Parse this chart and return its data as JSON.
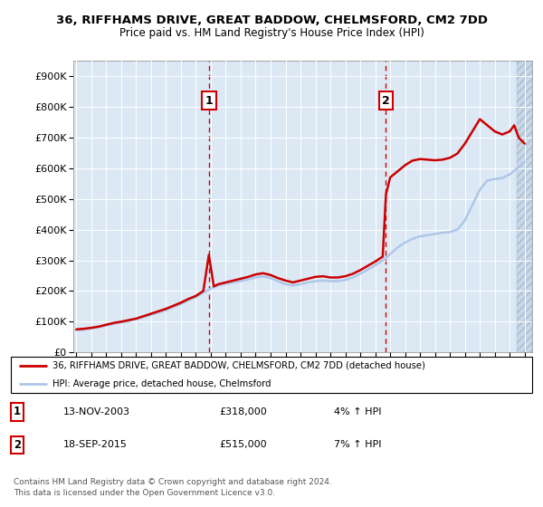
{
  "title1": "36, RIFFHAMS DRIVE, GREAT BADDOW, CHELMSFORD, CM2 7DD",
  "title2": "Price paid vs. HM Land Registry's House Price Index (HPI)",
  "ylabel_ticks": [
    "£0",
    "£100K",
    "£200K",
    "£300K",
    "£400K",
    "£500K",
    "£600K",
    "£700K",
    "£800K",
    "£900K"
  ],
  "ytick_values": [
    0,
    100000,
    200000,
    300000,
    400000,
    500000,
    600000,
    700000,
    800000,
    900000
  ],
  "ylim": [
    0,
    950000
  ],
  "xlim_start": 1994.8,
  "xlim_end": 2025.5,
  "plot_bg": "#dce9f5",
  "hpi_color": "#aec6e8",
  "price_color": "#cc0000",
  "marker1_date": 2003.87,
  "marker2_date": 2015.72,
  "annotation1_text": "1",
  "annotation2_text": "2",
  "legend_line1": "36, RIFFHAMS DRIVE, GREAT BADDOW, CHELMSFORD, CM2 7DD (detached house)",
  "legend_line2": "HPI: Average price, detached house, Chelmsford",
  "note1_label": "1",
  "note1_date": "13-NOV-2003",
  "note1_price": "£318,000",
  "note1_hpi": "4% ↑ HPI",
  "note2_label": "2",
  "note2_date": "18-SEP-2015",
  "note2_price": "£515,000",
  "note2_hpi": "7% ↑ HPI",
  "footer": "Contains HM Land Registry data © Crown copyright and database right 2024.\nThis data is licensed under the Open Government Licence v3.0.",
  "hpi_line": {
    "years": [
      1995.0,
      1995.5,
      1996.0,
      1996.5,
      1997.0,
      1997.5,
      1998.0,
      1998.5,
      1999.0,
      1999.5,
      2000.0,
      2000.5,
      2001.0,
      2001.5,
      2002.0,
      2002.5,
      2003.0,
      2003.5,
      2004.0,
      2004.5,
      2005.0,
      2005.5,
      2006.0,
      2006.5,
      2007.0,
      2007.5,
      2008.0,
      2008.5,
      2009.0,
      2009.5,
      2010.0,
      2010.5,
      2011.0,
      2011.5,
      2012.0,
      2012.5,
      2013.0,
      2013.5,
      2014.0,
      2014.5,
      2015.0,
      2015.5,
      2016.0,
      2016.5,
      2017.0,
      2017.5,
      2018.0,
      2018.5,
      2019.0,
      2019.5,
      2020.0,
      2020.5,
      2021.0,
      2021.5,
      2022.0,
      2022.5,
      2023.0,
      2023.5,
      2024.0,
      2024.5,
      2025.0
    ],
    "values": [
      72000,
      74000,
      78000,
      82000,
      88000,
      93000,
      98000,
      102000,
      108000,
      115000,
      122000,
      130000,
      138000,
      148000,
      158000,
      170000,
      180000,
      195000,
      208000,
      218000,
      224000,
      228000,
      232000,
      238000,
      244000,
      248000,
      242000,
      232000,
      222000,
      218000,
      222000,
      228000,
      232000,
      234000,
      232000,
      232000,
      236000,
      244000,
      256000,
      270000,
      284000,
      300000,
      320000,
      342000,
      358000,
      370000,
      378000,
      382000,
      386000,
      390000,
      392000,
      400000,
      430000,
      480000,
      530000,
      560000,
      565000,
      568000,
      580000,
      600000,
      620000
    ]
  },
  "price_line": {
    "years": [
      1995.0,
      1995.5,
      1996.0,
      1996.5,
      1997.0,
      1997.5,
      1998.0,
      1998.5,
      1999.0,
      1999.5,
      2000.0,
      2000.5,
      2001.0,
      2001.5,
      2002.0,
      2002.5,
      2003.0,
      2003.5,
      2003.87,
      2004.2,
      2004.5,
      2005.0,
      2005.5,
      2006.0,
      2006.5,
      2007.0,
      2007.5,
      2008.0,
      2008.5,
      2009.0,
      2009.5,
      2010.0,
      2010.5,
      2011.0,
      2011.5,
      2012.0,
      2012.5,
      2013.0,
      2013.5,
      2014.0,
      2014.5,
      2015.0,
      2015.5,
      2015.72,
      2016.0,
      2016.5,
      2017.0,
      2017.5,
      2018.0,
      2018.5,
      2019.0,
      2019.5,
      2020.0,
      2020.5,
      2021.0,
      2021.5,
      2022.0,
      2022.5,
      2023.0,
      2023.5,
      2024.0,
      2024.3,
      2024.6,
      2025.0
    ],
    "values": [
      75000,
      77000,
      80000,
      84000,
      90000,
      96000,
      100000,
      105000,
      110000,
      118000,
      126000,
      134000,
      142000,
      152000,
      162000,
      174000,
      184000,
      200000,
      318000,
      215000,
      222000,
      228000,
      234000,
      240000,
      246000,
      254000,
      258000,
      252000,
      242000,
      234000,
      228000,
      234000,
      240000,
      246000,
      248000,
      244000,
      244000,
      248000,
      256000,
      268000,
      282000,
      296000,
      312000,
      515000,
      570000,
      590000,
      610000,
      625000,
      630000,
      628000,
      626000,
      628000,
      634000,
      648000,
      680000,
      720000,
      760000,
      740000,
      720000,
      710000,
      720000,
      740000,
      700000,
      680000
    ]
  }
}
